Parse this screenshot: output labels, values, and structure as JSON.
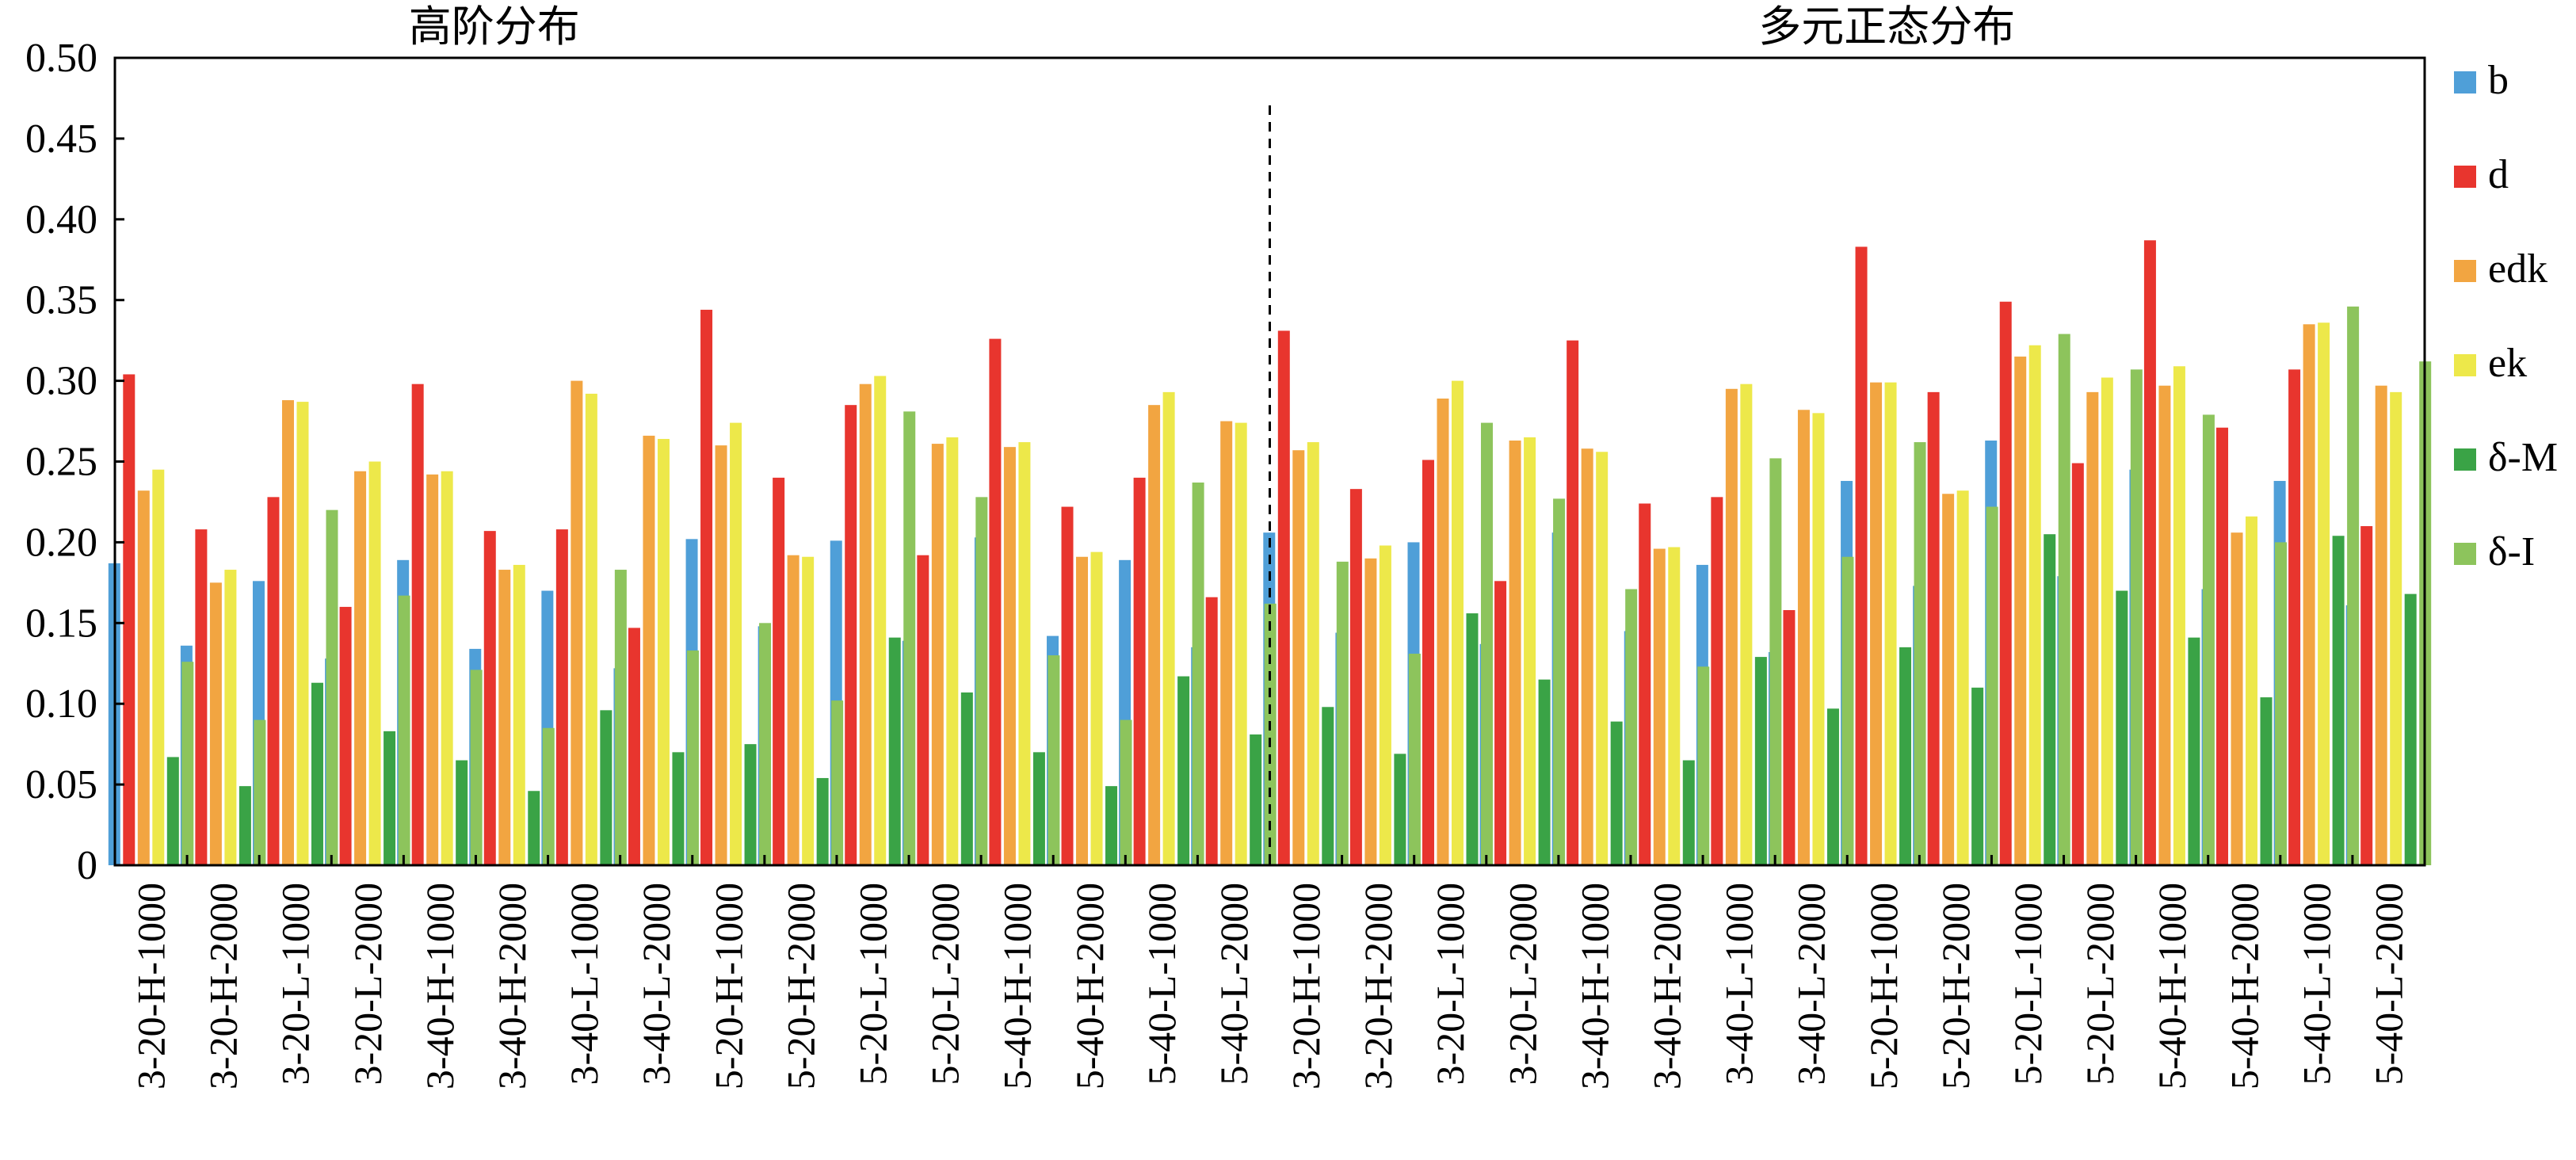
{
  "chart_data": {
    "type": "bar",
    "section_titles": [
      "高阶分布",
      "多元正态分布"
    ],
    "categories": [
      "3-20-H-1000",
      "3-20-H-2000",
      "3-20-L-1000",
      "3-20-L-2000",
      "3-40-H-1000",
      "3-40-H-2000",
      "3-40-L-1000",
      "3-40-L-2000",
      "5-20-H-1000",
      "5-20-H-2000",
      "5-20-L-1000",
      "5-20-L-2000",
      "5-40-H-1000",
      "5-40-H-2000",
      "5-40-L-1000",
      "5-40-L-2000",
      "3-20-H-1000",
      "3-20-H-2000",
      "3-20-L-1000",
      "3-20-L-2000",
      "3-40-H-1000",
      "3-40-H-2000",
      "3-40-L-1000",
      "3-40-L-2000",
      "5-20-H-1000",
      "5-20-H-2000",
      "5-20-L-1000",
      "5-20-L-2000",
      "5-40-H-1000",
      "5-40-H-2000",
      "5-40-L-1000",
      "5-40-L-2000"
    ],
    "series": [
      {
        "name": "b",
        "color": "#4f9fd8",
        "values": [
          0.187,
          0.136,
          0.176,
          0.128,
          0.189,
          0.134,
          0.17,
          0.122,
          0.202,
          0.148,
          0.201,
          0.139,
          0.203,
          0.142,
          0.189,
          0.135,
          0.206,
          0.144,
          0.2,
          0.137,
          0.206,
          0.145,
          0.186,
          0.132,
          0.238,
          0.173,
          0.263,
          0.179,
          0.245,
          0.171,
          0.238,
          0.161
        ]
      },
      {
        "name": "d",
        "color": "#e8352e",
        "values": [
          0.304,
          0.208,
          0.228,
          0.16,
          0.298,
          0.207,
          0.208,
          0.147,
          0.344,
          0.24,
          0.285,
          0.192,
          0.326,
          0.222,
          0.24,
          0.166,
          0.331,
          0.233,
          0.251,
          0.176,
          0.325,
          0.224,
          0.228,
          0.158,
          0.383,
          0.293,
          0.349,
          0.249,
          0.387,
          0.271,
          0.307,
          0.21
        ]
      },
      {
        "name": "edk",
        "color": "#f2a541",
        "values": [
          0.232,
          0.175,
          0.288,
          0.244,
          0.242,
          0.183,
          0.3,
          0.266,
          0.26,
          0.192,
          0.298,
          0.261,
          0.259,
          0.191,
          0.285,
          0.275,
          0.257,
          0.19,
          0.289,
          0.263,
          0.258,
          0.196,
          0.295,
          0.282,
          0.299,
          0.23,
          0.315,
          0.293,
          0.297,
          0.206,
          0.335,
          0.297
        ]
      },
      {
        "name": "ek",
        "color": "#ede84a",
        "values": [
          0.245,
          0.183,
          0.287,
          0.25,
          0.244,
          0.186,
          0.292,
          0.264,
          0.274,
          0.191,
          0.303,
          0.265,
          0.262,
          0.194,
          0.293,
          0.274,
          0.262,
          0.198,
          0.3,
          0.265,
          0.256,
          0.197,
          0.298,
          0.28,
          0.299,
          0.232,
          0.322,
          0.302,
          0.309,
          0.216,
          0.336,
          0.293
        ]
      },
      {
        "name": "δ-M",
        "color": "#3aa346",
        "values": [
          0.067,
          0.049,
          0.113,
          0.083,
          0.065,
          0.046,
          0.096,
          0.07,
          0.075,
          0.054,
          0.141,
          0.107,
          0.07,
          0.049,
          0.117,
          0.081,
          0.098,
          0.069,
          0.156,
          0.115,
          0.089,
          0.065,
          0.129,
          0.097,
          0.135,
          0.11,
          0.205,
          0.17,
          0.141,
          0.104,
          0.204,
          0.168
        ]
      },
      {
        "name": "δ-I",
        "color": "#8dc45c",
        "values": [
          0.126,
          0.09,
          0.22,
          0.167,
          0.121,
          0.085,
          0.183,
          0.133,
          0.15,
          0.102,
          0.281,
          0.228,
          0.13,
          0.09,
          0.237,
          0.162,
          0.188,
          0.131,
          0.274,
          0.227,
          0.171,
          0.123,
          0.252,
          0.191,
          0.262,
          0.222,
          0.329,
          0.307,
          0.279,
          0.2,
          0.346,
          0.312
        ]
      }
    ],
    "y_ticks": [
      "0",
      "0.05",
      "0.10",
      "0.15",
      "0.20",
      "0.25",
      "0.30",
      "0.35",
      "0.40",
      "0.45",
      "0.50"
    ],
    "ylim": [
      0,
      0.5
    ],
    "xlabel": "",
    "ylabel": "",
    "divider_after_index": 15,
    "legend_position": "right",
    "grid": false
  }
}
